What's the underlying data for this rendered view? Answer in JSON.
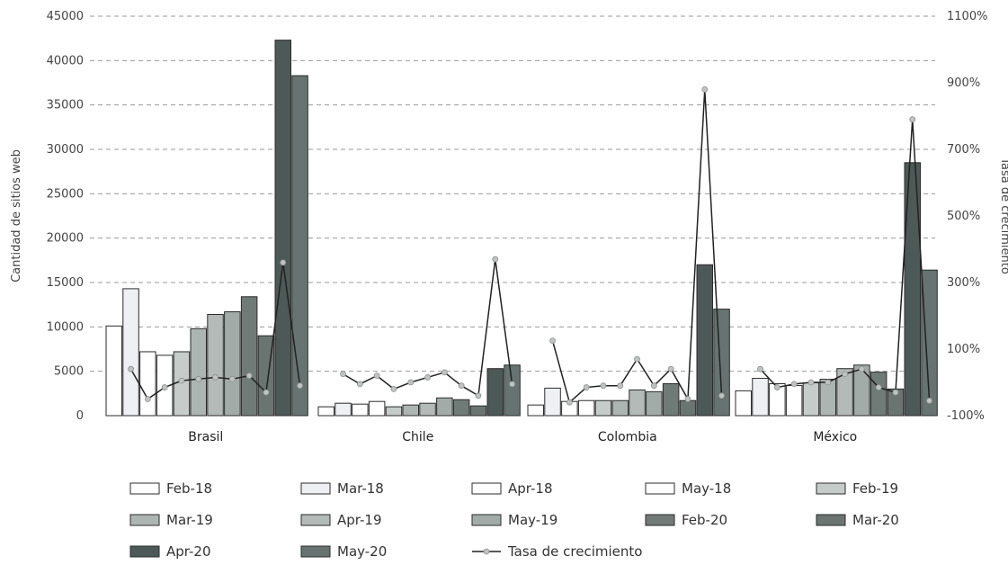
{
  "chart_data": {
    "type": "bar",
    "categories": [
      "Brasil",
      "Chile",
      "Colombia",
      "México"
    ],
    "ylabel": "Cantidad de sitios web",
    "y2label": "Tasa de crecimiento",
    "ylim": [
      0,
      45000
    ],
    "y2lim": [
      -100,
      1100
    ],
    "yticks": [
      "0",
      "5000",
      "10000",
      "15000",
      "20000",
      "25000",
      "30000",
      "35000",
      "40000",
      "45000"
    ],
    "y2ticks": [
      "-100%",
      "100%",
      "300%",
      "500%",
      "700%",
      "900%",
      "1100%"
    ],
    "grid": "horizontal dashed",
    "legend_position": "bottom",
    "series": [
      {
        "name": "Feb-18",
        "color": "#ffffff",
        "values": [
          10100,
          1000,
          1200,
          2800
        ]
      },
      {
        "name": "Mar-18",
        "color": "#eef0f4",
        "values": [
          14300,
          1400,
          3100,
          4200
        ]
      },
      {
        "name": "Apr-18",
        "color": "#ffffff",
        "values": [
          7200,
          1300,
          1600,
          3600
        ]
      },
      {
        "name": "May-18",
        "color": "#ffffff",
        "values": [
          6800,
          1600,
          1700,
          3400
        ]
      },
      {
        "name": "Feb-19",
        "color": "#c5ccc9",
        "values": [
          7200,
          1000,
          1700,
          3700
        ]
      },
      {
        "name": "Mar-19",
        "color": "#adb5b2",
        "values": [
          9800,
          1200,
          1700,
          4100
        ]
      },
      {
        "name": "Apr-19",
        "color": "#b3bab7",
        "values": [
          11400,
          1400,
          2900,
          5300
        ]
      },
      {
        "name": "May-19",
        "color": "#a3aba8",
        "values": [
          11700,
          2000,
          2700,
          5700
        ]
      },
      {
        "name": "Feb-20",
        "color": "#707a77",
        "values": [
          13400,
          1800,
          3600,
          4900
        ]
      },
      {
        "name": "Mar-20",
        "color": "#6a7572",
        "values": [
          9000,
          1100,
          1700,
          3000
        ]
      },
      {
        "name": "Apr-20",
        "color": "#4d5956",
        "values": [
          42300,
          5300,
          17000,
          28500
        ]
      },
      {
        "name": "May-20",
        "color": "#667370",
        "values": [
          38300,
          5700,
          12000,
          16400
        ]
      }
    ],
    "growth_rate": {
      "name": "Tasa de crecimiento",
      "color": "#222222",
      "marker_color": "#bfc3c1",
      "values": [
        [
          null,
          40,
          -50,
          -15,
          5,
          10,
          15,
          10,
          20,
          -30,
          360,
          -10
        ],
        [
          null,
          25,
          -5,
          20,
          -20,
          0,
          15,
          30,
          -10,
          -40,
          370,
          -5
        ],
        [
          null,
          125,
          -60,
          -15,
          -10,
          -10,
          70,
          -10,
          40,
          -50,
          880,
          -40
        ],
        [
          null,
          40,
          -15,
          -5,
          0,
          0,
          25,
          40,
          -15,
          -30,
          790,
          -55
        ]
      ]
    }
  }
}
